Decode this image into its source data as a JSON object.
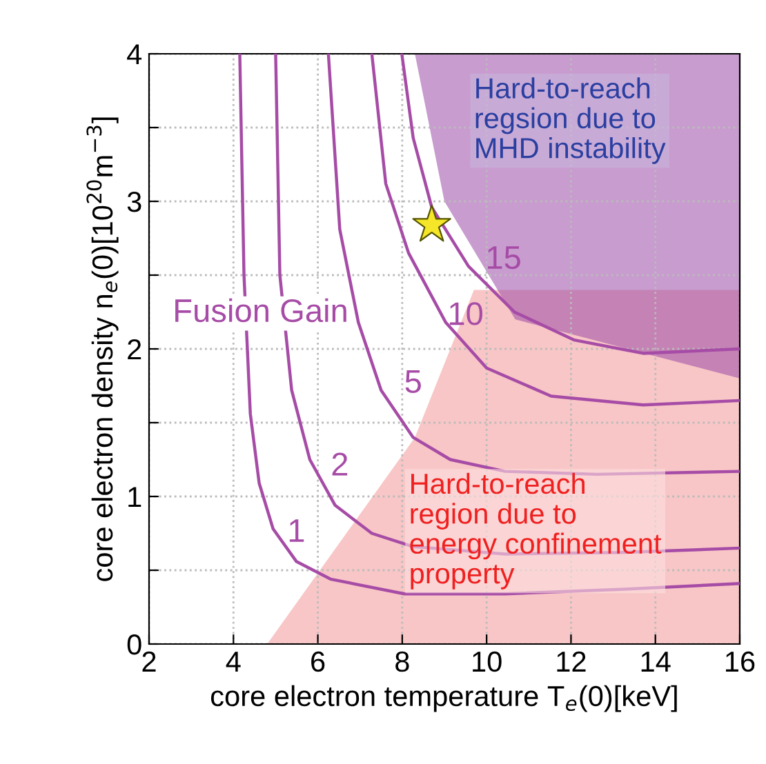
{
  "chart_data": {
    "type": "line",
    "xlabel": "core electron temperature T$_{e}$(0)[keV]",
    "ylabel": "core electron density n$_{e}$(0)[10$^{20}$m$^{−3}$]",
    "xlim": [
      2,
      16
    ],
    "xticks": [
      2,
      4,
      6,
      8,
      10,
      12,
      14,
      16
    ],
    "ylim": [
      0,
      4
    ],
    "yticks": [
      0,
      {
        "value": 0.5,
        "label": null
      },
      1,
      {
        "value": 1.5,
        "label": null
      },
      2,
      {
        "value": 2.5,
        "label": null
      },
      3,
      {
        "value": 3.5,
        "label": null
      },
      4
    ],
    "grid": true,
    "marker": "none",
    "line_style": "solid",
    "series": [
      {
        "name": "1",
        "color": "#a64ca6",
        "x": [
          4.15,
          4.25,
          4.4,
          4.61,
          4.94,
          5.49,
          6.3,
          8.05,
          10.44,
          13.17,
          16.0
        ],
        "values": [
          4.0,
          2.5,
          1.56,
          1.09,
          0.78,
          0.56,
          0.44,
          0.34,
          0.34,
          0.37,
          0.41
        ]
      },
      {
        "name": "2",
        "color": "#a64ca6",
        "x": [
          5.0,
          5.1,
          5.38,
          5.81,
          6.41,
          7.28,
          8.26,
          10.44,
          13.17,
          16.0
        ],
        "values": [
          4.0,
          2.5,
          1.72,
          1.25,
          0.94,
          0.75,
          0.66,
          0.61,
          0.62,
          0.65
        ]
      },
      {
        "name": "5",
        "color": "#a64ca6",
        "x": [
          6.25,
          6.52,
          6.96,
          7.5,
          8.26,
          9.14,
          10.44,
          12.62,
          16.0
        ],
        "values": [
          4.0,
          2.81,
          2.18,
          1.72,
          1.4,
          1.25,
          1.17,
          1.15,
          1.17
        ]
      },
      {
        "name": "10",
        "color": "#a64ca6",
        "x": [
          7.28,
          7.61,
          8.15,
          9.03,
          10.0,
          11.53,
          13.71,
          16.0
        ],
        "values": [
          4.0,
          3.12,
          2.65,
          2.18,
          1.87,
          1.68,
          1.62,
          1.65
        ]
      },
      {
        "name": "15",
        "color": "#a64ca6",
        "x": [
          7.99,
          8.26,
          8.7,
          9.57,
          10.66,
          12.08,
          13.71,
          16.0
        ],
        "values": [
          4.0,
          3.43,
          2.96,
          2.56,
          2.25,
          2.06,
          1.97,
          2.0
        ]
      },
      {
        "type": "scatter",
        "marker": "star",
        "color": "#f5e62a",
        "x": [
          8.7
        ],
        "values": [
          2.84
        ]
      }
    ],
    "annotations": [
      "Fusion Gain",
      "Hard-to-reach\nregsion due to\nMHD instability",
      "Hard-to-reach\nregion due to\nenergy confinement\nproperty"
    ]
  }
}
